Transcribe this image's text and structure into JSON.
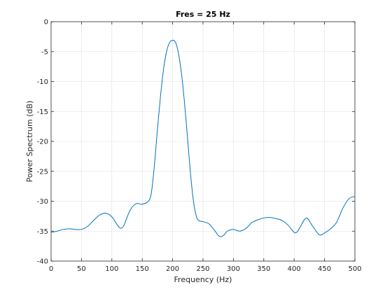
{
  "chart_data": {
    "type": "line",
    "title": "Fres = 25 Hz",
    "xlabel": "Frequency (Hz)",
    "ylabel": "Power Spectrum (dB)",
    "xlim": [
      0,
      500
    ],
    "ylim": [
      -40,
      0
    ],
    "xticks": [
      0,
      50,
      100,
      150,
      200,
      250,
      300,
      350,
      400,
      450,
      500
    ],
    "yticks": [
      0,
      -5,
      -10,
      -15,
      -20,
      -25,
      -30,
      -35,
      -40
    ],
    "grid": true,
    "series": [
      {
        "color": "#0072BD",
        "x": [
          0,
          10,
          20,
          30,
          40,
          50,
          60,
          70,
          80,
          90,
          100,
          110,
          115,
          120,
          130,
          140,
          150,
          160,
          165,
          170,
          175,
          180,
          185,
          190,
          195,
          200,
          205,
          210,
          215,
          220,
          225,
          230,
          235,
          240,
          245,
          250,
          260,
          270,
          275,
          280,
          285,
          290,
          300,
          310,
          320,
          330,
          340,
          350,
          360,
          370,
          380,
          390,
          400,
          405,
          410,
          420,
          430,
          440,
          445,
          450,
          460,
          470,
          480,
          490,
          500
        ],
        "y": [
          -35.2,
          -35.0,
          -34.7,
          -34.6,
          -34.7,
          -34.7,
          -34.2,
          -33.2,
          -32.3,
          -32.0,
          -32.6,
          -34.1,
          -34.5,
          -34.0,
          -31.5,
          -30.4,
          -30.5,
          -30.0,
          -28.6,
          -24.0,
          -18.0,
          -12.5,
          -8.0,
          -5.0,
          -3.5,
          -3.1,
          -3.5,
          -5.5,
          -9.0,
          -14.0,
          -20.0,
          -26.0,
          -30.5,
          -32.8,
          -33.3,
          -33.4,
          -33.8,
          -35.0,
          -35.7,
          -35.9,
          -35.6,
          -35.0,
          -34.7,
          -35.0,
          -34.6,
          -33.6,
          -33.1,
          -32.8,
          -32.7,
          -32.9,
          -33.2,
          -34.0,
          -35.2,
          -35.1,
          -34.3,
          -32.8,
          -34.1,
          -35.5,
          -35.6,
          -35.3,
          -34.6,
          -33.5,
          -31.2,
          -29.6,
          -29.2
        ]
      }
    ]
  }
}
